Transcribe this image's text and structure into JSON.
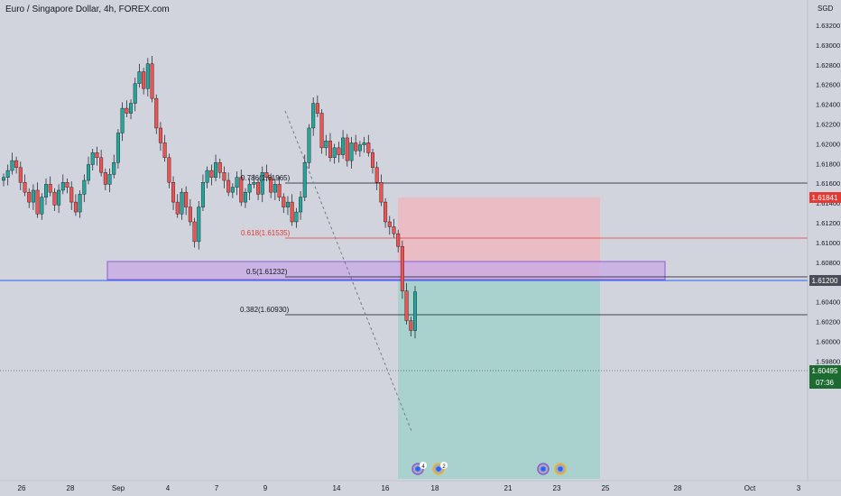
{
  "header": {
    "title": "Euro / Singapore Dollar, 4h, FOREX.com",
    "currency": "SGD"
  },
  "colors": {
    "up": "#26a69a",
    "down": "#ef5350",
    "background": "#d1d4dc",
    "zone": "#b39ddb",
    "stop": "#f4b8bf",
    "target": "#a7d3cf",
    "current": "#1e6b32",
    "level": "#e53935",
    "blue_line": "#2962ff"
  },
  "price_axis": {
    "ticks": [
      "1.63200",
      "1.63000",
      "1.62800",
      "1.62600",
      "1.62400",
      "1.62200",
      "1.62000",
      "1.61800",
      "1.61600",
      "1.61400",
      "1.61200",
      "1.61000",
      "1.60800",
      "1.60600",
      "1.60400",
      "1.60200",
      "1.60000",
      "1.59800"
    ],
    "badge_stop": "1.61841",
    "badge_level": "1.61200",
    "badge_current": "1.60495",
    "badge_timer": "07:36"
  },
  "time_axis": {
    "labels": [
      "26",
      "28",
      "Sep",
      "4",
      "7",
      "9",
      "14",
      "16",
      "18",
      "21",
      "23",
      "25",
      "28",
      "Oct",
      "3"
    ]
  },
  "fib_labels": {
    "f786": "0.786(1.61965)",
    "f618": "0.618(1.61535)",
    "f5": "0.5(1.61232)",
    "f382": "0.382(1.60930)"
  },
  "event_badges": [
    "4",
    "2"
  ],
  "chart_data": {
    "type": "candlestick",
    "symbol": "EURSGD",
    "timeframe": "4h",
    "ylim": [
      1.597,
      1.6335
    ],
    "levels": {
      "fib_786": 1.61965,
      "fib_618": 1.61535,
      "fib_5": 1.61232,
      "fib_382": 1.6093,
      "stop": 1.61841,
      "entry": 1.612,
      "current": 1.60495
    },
    "close": [
      1.6165,
      1.6172,
      1.6182,
      1.6175,
      1.616,
      1.615,
      1.614,
      1.6152,
      1.6128,
      1.6145,
      1.6158,
      1.615,
      1.6137,
      1.6152,
      1.616,
      1.6155,
      1.614,
      1.613,
      1.6148,
      1.6162,
      1.6178,
      1.619,
      1.6185,
      1.617,
      1.6158,
      1.6168,
      1.618,
      1.621,
      1.6235,
      1.623,
      1.624,
      1.626,
      1.6272,
      1.6255,
      1.628,
      1.6245,
      1.6215,
      1.62,
      1.6185,
      1.616,
      1.614,
      1.6128,
      1.615,
      1.6135,
      1.612,
      1.61,
      1.6135,
      1.616,
      1.6172,
      1.6165,
      1.618,
      1.617,
      1.6162,
      1.615,
      1.6155,
      1.6165,
      1.614,
      1.615,
      1.6158,
      1.616,
      1.6148,
      1.617,
      1.6165,
      1.615,
      1.6158,
      1.6145,
      1.6135,
      1.614,
      1.612,
      1.613,
      1.6145,
      1.618,
      1.6215,
      1.624,
      1.623,
      1.6195,
      1.6202,
      1.6185,
      1.6195,
      1.6188,
      1.6205,
      1.6182,
      1.62,
      1.6192,
      1.6198,
      1.62,
      1.619,
      1.6175,
      1.616,
      1.614,
      1.612,
      1.6115,
      1.6108,
      1.6095,
      1.605,
      1.602,
      1.601,
      1.6049
    ]
  }
}
